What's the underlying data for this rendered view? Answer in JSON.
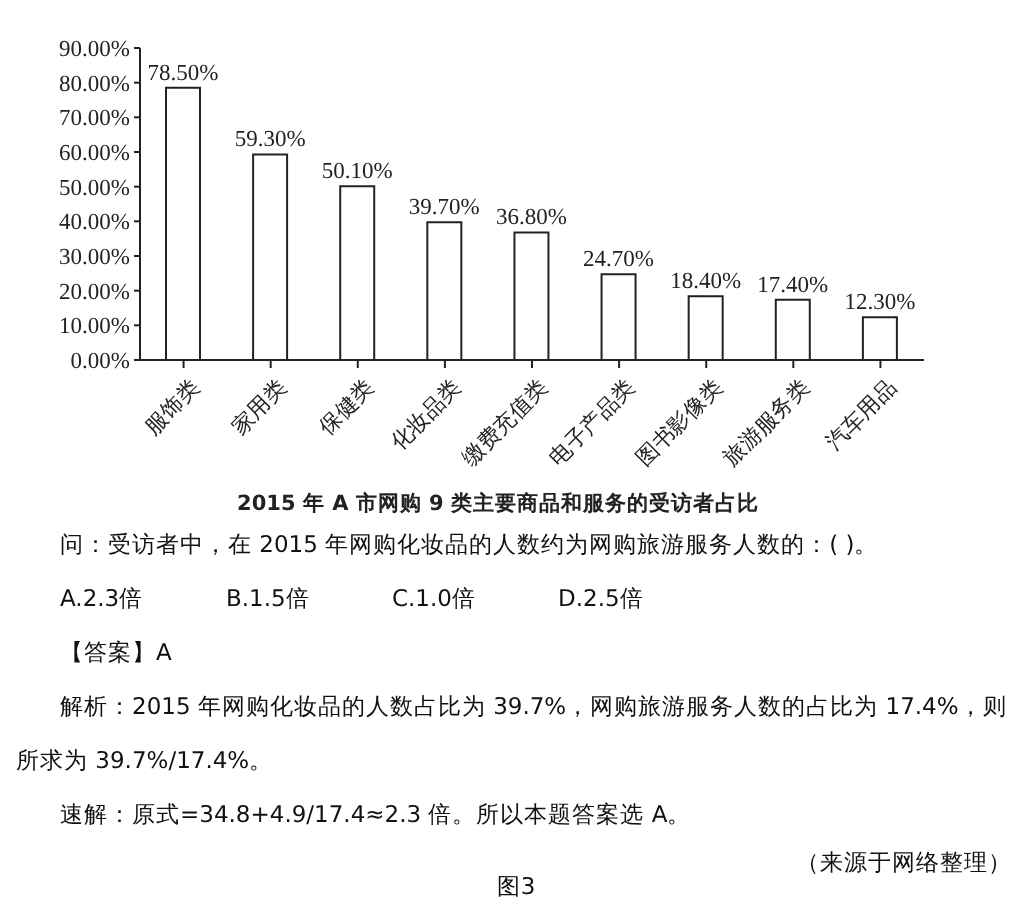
{
  "chart_data": {
    "type": "bar",
    "title": "2015 年 A 市网购 9 类主要商品和服务的受访者占比",
    "categories": [
      "服饰类",
      "家用类",
      "保健类",
      "化妆品类",
      "缴费充值类",
      "电子产品类",
      "图书影像类",
      "旅游服务类",
      "汽车用品"
    ],
    "values": [
      78.5,
      59.3,
      50.1,
      39.7,
      36.8,
      24.7,
      18.4,
      17.4,
      12.3
    ],
    "value_labels": [
      "78.50%",
      "59.30%",
      "50.10%",
      "39.70%",
      "36.80%",
      "24.70%",
      "18.40%",
      "17.40%",
      "12.30%"
    ],
    "color": "#ffffff",
    "ylim": [
      0,
      90
    ],
    "yticks": [
      {
        "value": 0,
        "label": "0.00%"
      },
      {
        "value": 10,
        "label": "10.00%"
      },
      {
        "value": 20,
        "label": "20.00%"
      },
      {
        "value": 30,
        "label": "30.00%"
      },
      {
        "value": 40,
        "label": "40.00%"
      },
      {
        "value": 50,
        "label": "50.00%"
      },
      {
        "value": 60,
        "label": "60.00%"
      },
      {
        "value": 70,
        "label": "70.00%"
      },
      {
        "value": 80,
        "label": "80.00%"
      },
      {
        "value": 90,
        "label": "90.00%"
      }
    ],
    "annotations": [
      "问：受访者中，在 2015 年网购化妆品的人数约为网购旅游服务人数的：( )。",
      "A.2.3倍",
      "B.1.5倍",
      "C.1.0倍",
      "D.2.5倍",
      "【答案】A",
      "解析：2015 年网购化妆品的人数占比为 39.7%，网购旅游服务人数的占比为 17.4%，则所求为 39.7%/17.4%。",
      "速解：原式=34.8+4.9/17.4≈2.3 倍。所以本题答案选 A。",
      "（来源于网络整理）",
      "图3"
    ]
  }
}
